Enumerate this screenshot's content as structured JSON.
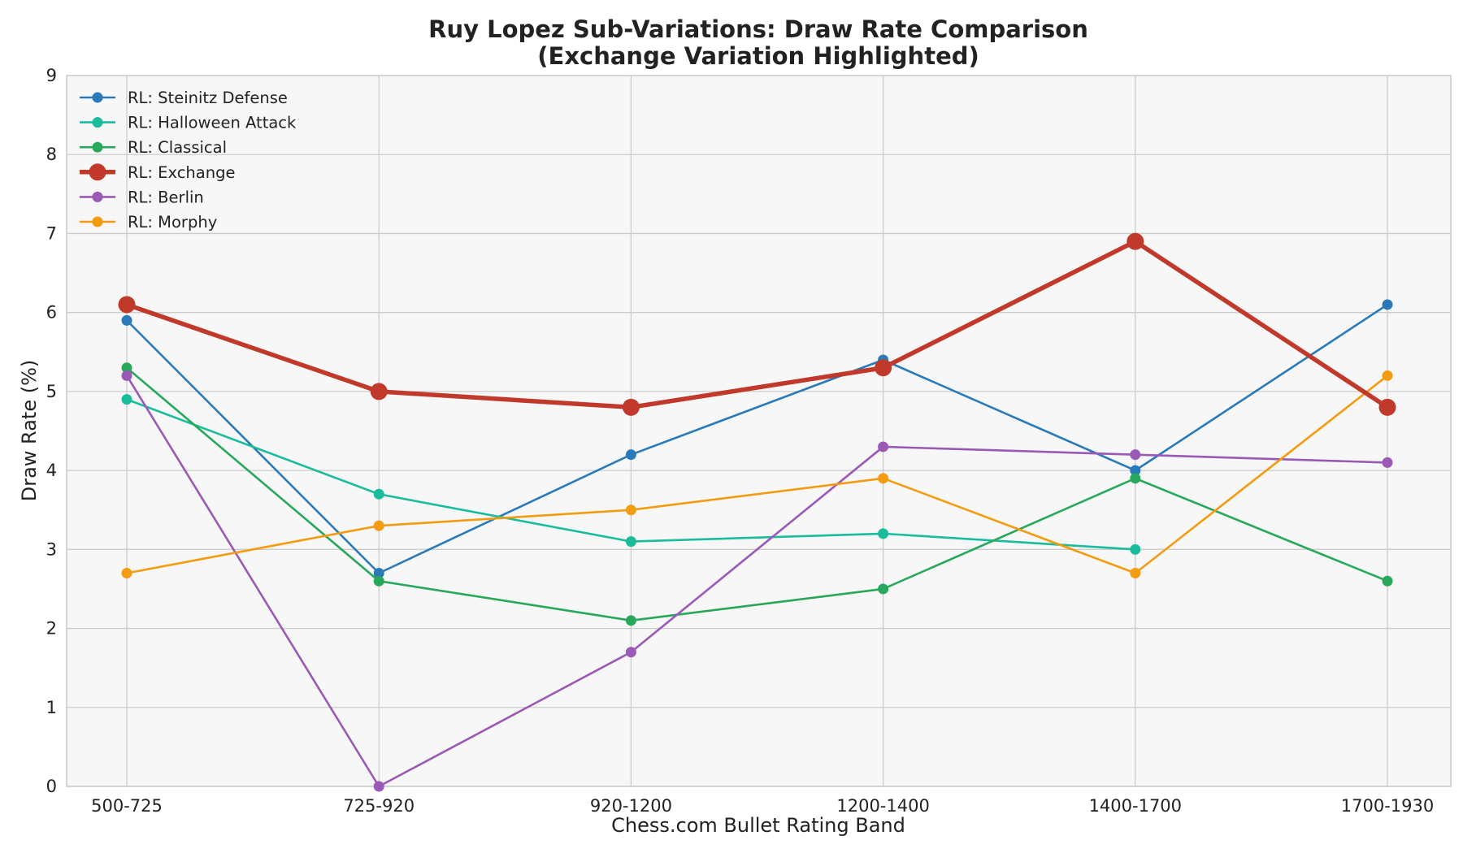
{
  "chart_data": {
    "type": "line",
    "title": "Ruy Lopez Sub-Variations: Draw Rate Comparison",
    "subtitle": "(Exchange Variation Highlighted)",
    "xlabel": "Chess.com Bullet Rating Band",
    "ylabel": "Draw Rate (%)",
    "categories": [
      "500-725",
      "725-920",
      "920-1200",
      "1200-1400",
      "1400-1700",
      "1700-1930"
    ],
    "ylim": [
      0,
      9
    ],
    "yticks": [
      "0",
      "1",
      "2",
      "3",
      "4",
      "5",
      "6",
      "7",
      "8",
      "9"
    ],
    "grid": true,
    "legend_position": "top-left",
    "series": [
      {
        "name": "RL: Steinitz Defense",
        "color": "#2a7ab9",
        "highlight": false,
        "values": [
          5.9,
          2.7,
          4.2,
          5.4,
          4.0,
          6.1
        ]
      },
      {
        "name": "RL: Halloween Attack",
        "color": "#1abc9c",
        "highlight": false,
        "values": [
          4.9,
          3.7,
          3.1,
          3.2,
          3.0,
          null
        ]
      },
      {
        "name": "RL: Classical",
        "color": "#27a85a",
        "highlight": false,
        "values": [
          5.3,
          2.6,
          2.1,
          2.5,
          3.9,
          2.6
        ]
      },
      {
        "name": "RL: Exchange",
        "color": "#c0392b",
        "highlight": true,
        "values": [
          6.1,
          5.0,
          4.8,
          5.3,
          6.9,
          4.8
        ]
      },
      {
        "name": "RL: Berlin",
        "color": "#9b59b6",
        "highlight": false,
        "values": [
          5.2,
          0.0,
          1.7,
          4.3,
          4.2,
          4.1
        ]
      },
      {
        "name": "RL: Morphy",
        "color": "#f39c12",
        "highlight": false,
        "values": [
          2.7,
          3.3,
          3.5,
          3.9,
          2.7,
          5.2
        ]
      }
    ]
  }
}
